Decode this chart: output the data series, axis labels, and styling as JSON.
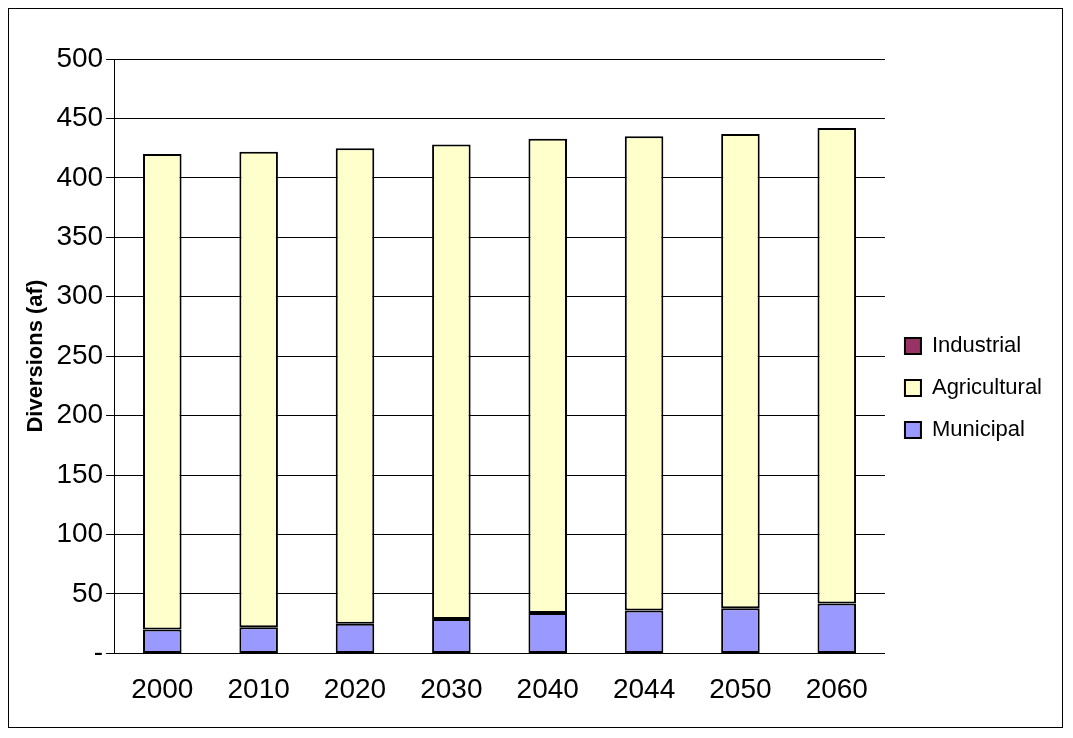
{
  "chart_data": {
    "type": "bar",
    "ylabel": "Diversions (af)",
    "categories": [
      "2000",
      "2010",
      "2020",
      "2030",
      "2040",
      "2044",
      "2050",
      "2060"
    ],
    "series": [
      {
        "name": "Municipal",
        "color": "#9999ff",
        "values": [
          20,
          22,
          25,
          29,
          34,
          36,
          38,
          42
        ]
      },
      {
        "name": "Agricultural",
        "color": "#ffffcc",
        "values": [
          400,
          400,
          400,
          399,
          399,
          399,
          399,
          400
        ]
      },
      {
        "name": "Industrial",
        "color": "#993366",
        "values": [
          0,
          0,
          0,
          0,
          0,
          0,
          0,
          0
        ]
      }
    ],
    "stacked": true,
    "ylim": [
      0,
      500
    ],
    "yticks": [
      {
        "value": 0,
        "label": "-"
      },
      50,
      100,
      150,
      200,
      250,
      300,
      350,
      400,
      450,
      500
    ],
    "grid": "y",
    "legend": "right"
  }
}
